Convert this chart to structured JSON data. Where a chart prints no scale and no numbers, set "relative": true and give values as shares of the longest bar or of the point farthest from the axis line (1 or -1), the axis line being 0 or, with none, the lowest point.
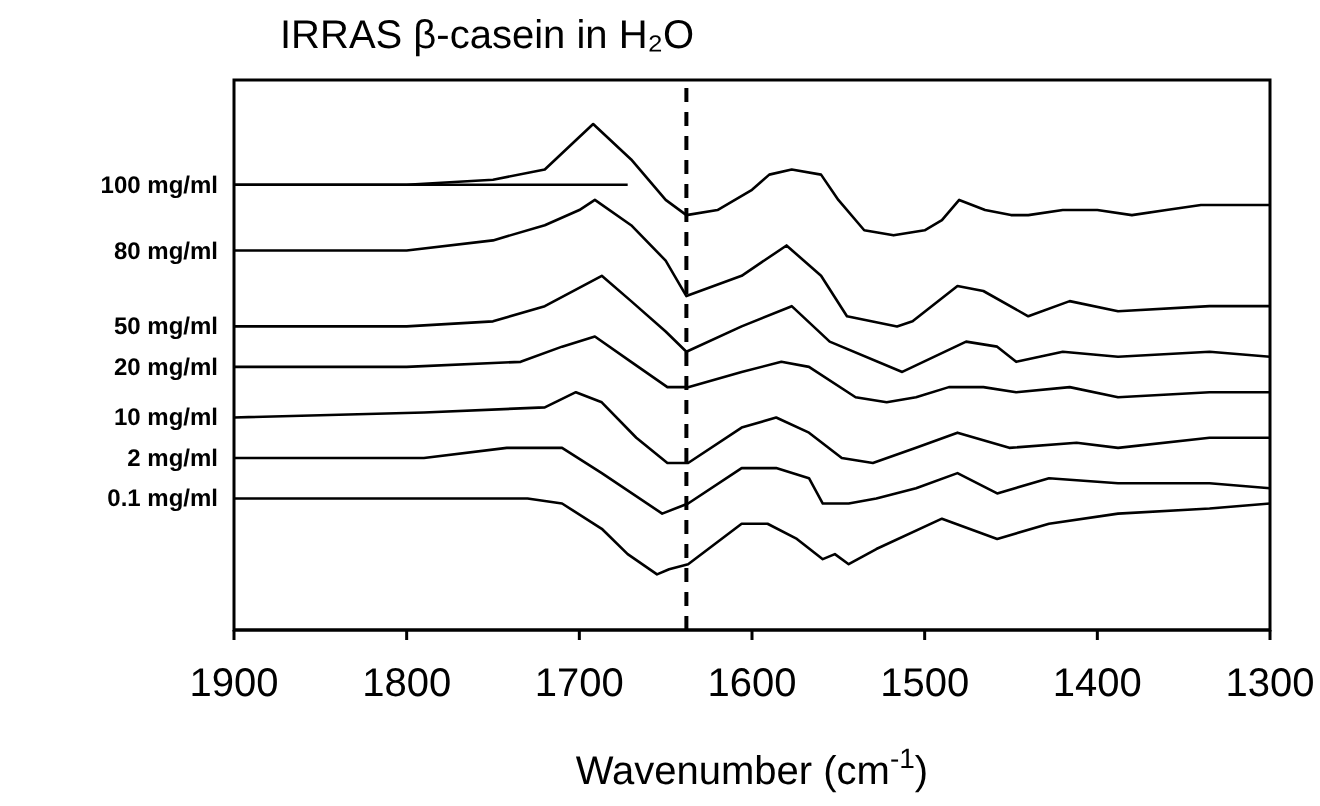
{
  "chart_data": {
    "type": "line",
    "title": "IRRAS β-casein in H₂O",
    "xlabel": "Wavenumber (cm$^{-1}$)",
    "relative": true,
    "xlim": [
      1900,
      1300
    ],
    "xticks": [
      1900,
      1800,
      1700,
      1600,
      1500,
      1400,
      1300
    ],
    "legend": false,
    "grid": false,
    "marker": "none",
    "line_style": "solid",
    "tick_labels": "x",
    "ref_lines": [
      {
        "axis": "x",
        "value": 1638,
        "line_style": "dashed",
        "color": "#000000"
      }
    ],
    "series": [
      {
        "name": "100 mg/ml",
        "color": "#000000",
        "x": [
          1900,
          1800,
          1750,
          1720,
          1692,
          1670,
          1650,
          1638,
          1620,
          1600,
          1590,
          1577,
          1560,
          1550,
          1535,
          1518,
          1500,
          1490,
          1480,
          1465,
          1450,
          1440,
          1420,
          1400,
          1380,
          1360,
          1340,
          1300
        ],
        "values": [
          0.88,
          0.88,
          0.89,
          0.91,
          1.0,
          0.93,
          0.85,
          0.82,
          0.83,
          0.87,
          0.9,
          0.91,
          0.9,
          0.85,
          0.79,
          0.78,
          0.79,
          0.81,
          0.85,
          0.83,
          0.82,
          0.82,
          0.83,
          0.83,
          0.82,
          0.83,
          0.84,
          0.84
        ]
      },
      {
        "color": "#000000",
        "x": [
          1900,
          1672
        ],
        "values": [
          0.88,
          0.88
        ]
      },
      {
        "name": "80 mg/ml",
        "color": "#000000",
        "x": [
          1900,
          1800,
          1750,
          1720,
          1700,
          1691,
          1670,
          1650,
          1638,
          1606,
          1580,
          1560,
          1545,
          1516,
          1507,
          1481,
          1466,
          1440,
          1416,
          1388,
          1335,
          1300
        ],
        "values": [
          0.75,
          0.75,
          0.77,
          0.8,
          0.83,
          0.85,
          0.8,
          0.73,
          0.66,
          0.7,
          0.76,
          0.7,
          0.62,
          0.6,
          0.61,
          0.68,
          0.67,
          0.62,
          0.65,
          0.63,
          0.64,
          0.64
        ]
      },
      {
        "name": "50 mg/ml",
        "color": "#000000",
        "x": [
          1900,
          1800,
          1750,
          1720,
          1687,
          1670,
          1650,
          1638,
          1606,
          1577,
          1555,
          1513,
          1476,
          1458,
          1447,
          1420,
          1388,
          1335,
          1300
        ],
        "values": [
          0.6,
          0.6,
          0.61,
          0.64,
          0.7,
          0.65,
          0.59,
          0.55,
          0.6,
          0.64,
          0.57,
          0.51,
          0.57,
          0.56,
          0.53,
          0.55,
          0.54,
          0.55,
          0.54
        ]
      },
      {
        "name": "20 mg/ml",
        "color": "#000000",
        "x": [
          1900,
          1800,
          1734,
          1710,
          1691,
          1670,
          1649,
          1637,
          1606,
          1583,
          1567,
          1540,
          1522,
          1505,
          1486,
          1466,
          1447,
          1416,
          1388,
          1335,
          1300
        ],
        "values": [
          0.52,
          0.52,
          0.53,
          0.56,
          0.58,
          0.53,
          0.48,
          0.48,
          0.51,
          0.53,
          0.52,
          0.46,
          0.45,
          0.46,
          0.48,
          0.48,
          0.47,
          0.48,
          0.46,
          0.47,
          0.47
        ]
      },
      {
        "name": "10 mg/ml",
        "color": "#000000",
        "x": [
          1900,
          1790,
          1720,
          1702,
          1687,
          1667,
          1649,
          1637,
          1606,
          1586,
          1567,
          1548,
          1530,
          1505,
          1481,
          1451,
          1412,
          1388,
          1335,
          1300
        ],
        "values": [
          0.42,
          0.43,
          0.44,
          0.47,
          0.45,
          0.38,
          0.33,
          0.33,
          0.4,
          0.42,
          0.39,
          0.34,
          0.33,
          0.36,
          0.39,
          0.36,
          0.37,
          0.36,
          0.38,
          0.38
        ]
      },
      {
        "name": "2 mg/ml",
        "color": "#000000",
        "x": [
          1900,
          1790,
          1742,
          1725,
          1710,
          1687,
          1652,
          1637,
          1606,
          1586,
          1567,
          1559,
          1544,
          1528,
          1505,
          1481,
          1458,
          1428,
          1388,
          1335,
          1300
        ],
        "values": [
          0.34,
          0.34,
          0.36,
          0.36,
          0.36,
          0.31,
          0.23,
          0.25,
          0.32,
          0.32,
          0.3,
          0.25,
          0.25,
          0.26,
          0.28,
          0.31,
          0.27,
          0.3,
          0.29,
          0.29,
          0.28
        ]
      },
      {
        "name": "0.1 mg/ml",
        "color": "#000000",
        "x": [
          1900,
          1790,
          1730,
          1710,
          1687,
          1672,
          1655,
          1648,
          1637,
          1606,
          1591,
          1574,
          1559,
          1552,
          1544,
          1528,
          1490,
          1458,
          1428,
          1388,
          1335,
          1300
        ],
        "values": [
          0.26,
          0.26,
          0.26,
          0.25,
          0.2,
          0.15,
          0.11,
          0.12,
          0.13,
          0.21,
          0.21,
          0.18,
          0.14,
          0.15,
          0.13,
          0.16,
          0.22,
          0.18,
          0.21,
          0.23,
          0.24,
          0.25
        ]
      }
    ]
  }
}
